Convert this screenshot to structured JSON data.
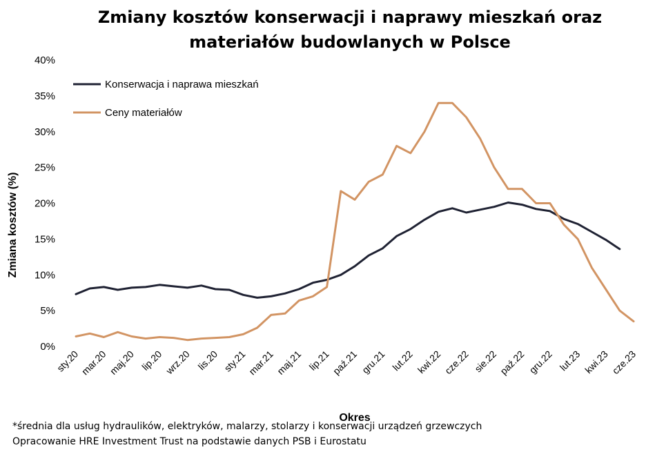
{
  "chart_data": {
    "type": "line",
    "title": [
      "Zmiany kosztów konserwacji i naprawy mieszkań oraz",
      "materiałów budowlanych w Polsce"
    ],
    "xlabel": "Okres",
    "ylabel": "Zmiana kosztów (%)",
    "ylim": [
      0,
      40
    ],
    "y_ticks": [
      "0%",
      "5%",
      "10%",
      "15%",
      "20%",
      "25%",
      "30%",
      "35%",
      "40%"
    ],
    "grid": false,
    "legend_position": "top-left",
    "x": [
      "sty.20",
      "lut.20",
      "mar.20",
      "kwi.20",
      "maj.20",
      "cze.20",
      "lip.20",
      "sie.20",
      "wrz.20",
      "paź.20",
      "lis.20",
      "gru.20",
      "sty.21",
      "lut.21",
      "mar.21",
      "kwi.21",
      "maj.21",
      "cze.21",
      "lip.21",
      "sie.21",
      "paź.21",
      "lis.21",
      "gru.21",
      "sty.22",
      "lut.22",
      "mar.22",
      "kwi.22",
      "maj.22",
      "cze.22",
      "lip.22",
      "sie.22",
      "wrz.22",
      "paź.22",
      "lis.22",
      "gru.22",
      "sty.23",
      "lut.23",
      "mar.23",
      "kwi.23",
      "maj.23",
      "cze.23"
    ],
    "x_tick_labels": [
      "sty.20",
      "mar.20",
      "maj.20",
      "lip.20",
      "wrz.20",
      "lis.20",
      "sty.21",
      "mar.21",
      "maj.21",
      "lip.21",
      "paź.21",
      "gru.21",
      "lut.22",
      "kwi.22",
      "cze.22",
      "sie.22",
      "paź.22",
      "gru.22",
      "lut.23",
      "kwi.23",
      "cze.23"
    ],
    "series": [
      {
        "name": "Konserwacja i naprawa mieszkań",
        "color": "#1f2233",
        "values": [
          7.3,
          8.1,
          8.3,
          7.9,
          8.2,
          8.3,
          8.6,
          8.4,
          8.2,
          8.5,
          8.0,
          7.9,
          7.2,
          6.8,
          7.0,
          7.4,
          8.0,
          8.9,
          9.3,
          10.0,
          11.2,
          12.7,
          13.7,
          15.4,
          16.4,
          17.7,
          18.8,
          19.3,
          18.7,
          19.1,
          19.5,
          20.1,
          19.8,
          19.2,
          18.9,
          17.8,
          17.1,
          16.0,
          14.9,
          13.6,
          null
        ]
      },
      {
        "name": "Ceny materiałów",
        "color": "#d29463",
        "values": [
          1.4,
          1.8,
          1.3,
          2.0,
          1.4,
          1.1,
          1.3,
          1.2,
          0.9,
          1.1,
          1.2,
          1.3,
          1.7,
          2.6,
          4.4,
          4.6,
          6.4,
          7.0,
          8.3,
          21.7,
          20.5,
          23.0,
          24.0,
          28.0,
          27.0,
          30.0,
          34.0,
          34.0,
          32.0,
          29.0,
          25.0,
          22.0,
          22.0,
          20.0,
          20.0,
          17.0,
          15.0,
          11.0,
          8.0,
          5.0,
          3.5
        ]
      }
    ]
  },
  "footnotes": [
    "*średnia dla usług hydraulików, elektryków, malarzy, stolarzy i konserwacji urządzeń grzewczych",
    "Opracowanie HRE Investment Trust na podstawie danych PSB i Eurostatu"
  ]
}
